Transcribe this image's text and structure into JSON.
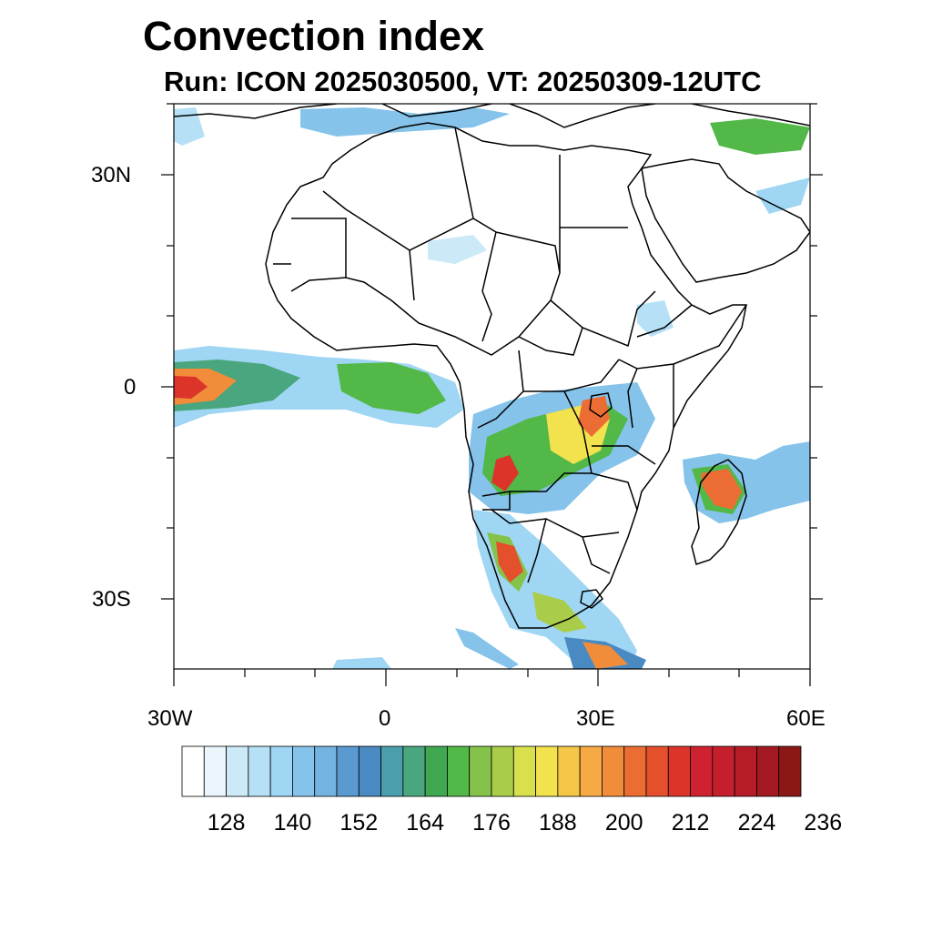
{
  "title": "Convection index",
  "subtitle": "Run: ICON 2025030500,  VT: 20250309-12UTC",
  "axes": {
    "lat_labels": [
      "30N",
      "0",
      "30S"
    ],
    "lon_labels": [
      "30W",
      "0",
      "30E",
      "60E"
    ]
  },
  "colorbar": {
    "colors": [
      "#ffffff",
      "#eaf6fc",
      "#cce9f7",
      "#b5e0f5",
      "#9fd6f3",
      "#85c3ea",
      "#73b3e2",
      "#5a9ad1",
      "#4a8ac2",
      "#4b9eab",
      "#4aa67f",
      "#3fa850",
      "#52b848",
      "#84c24a",
      "#a9cd4a",
      "#d9e04d",
      "#f2e24e",
      "#f6c648",
      "#f6a944",
      "#f18c3a",
      "#ec6d33",
      "#e4502b",
      "#dc3429",
      "#cf2230",
      "#c51f2e",
      "#b51c28",
      "#a41a23",
      "#8c1717"
    ],
    "labels": [
      "128",
      "140",
      "152",
      "164",
      "176",
      "188",
      "200",
      "212",
      "224",
      "236"
    ]
  },
  "map_legend": {
    "region": "Africa and Arabia, 40N–40S, 30W–60E",
    "layers": [
      "coastlines",
      "country borders",
      "convection index shading"
    ]
  }
}
